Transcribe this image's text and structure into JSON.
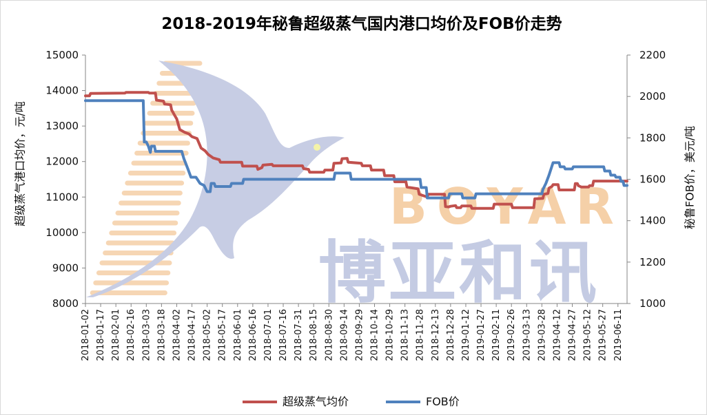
{
  "chart_data": {
    "type": "line",
    "title": "2018-2019年秘鲁超级蒸气国内港口均价及FOB价走势",
    "ylabel_left": "超级蒸气港口均价，元/吨",
    "ylabel_right": "秘鲁FOB价，美元/吨",
    "ylim_left": [
      8000,
      15000
    ],
    "ylim_right": [
      1000,
      2200
    ],
    "yticks_left": [
      "8000",
      "9000",
      "10000",
      "11000",
      "12000",
      "13000",
      "14000",
      "15000"
    ],
    "yticks_right": [
      "1000",
      "1200",
      "1400",
      "1600",
      "1800",
      "2000",
      "2200"
    ],
    "x_start": "2018-01-02",
    "x_end": "2019-06-20",
    "x_ticks": [
      "2018-01-02",
      "2018-01-17",
      "2018-02-01",
      "2018-02-16",
      "2018-03-03",
      "2018-03-18",
      "2018-04-02",
      "2018-04-17",
      "2018-05-02",
      "2018-05-17",
      "2018-06-01",
      "2018-06-16",
      "2018-07-01",
      "2018-07-16",
      "2018-07-31",
      "2018-08-15",
      "2018-08-30",
      "2018-09-14",
      "2018-09-29",
      "2018-10-14",
      "2018-10-29",
      "2018-11-13",
      "2018-11-28",
      "2018-12-13",
      "2018-12-28",
      "2019-01-12",
      "2019-01-27",
      "2019-02-11",
      "2019-02-26",
      "2019-03-13",
      "2019-03-28",
      "2019-04-12",
      "2019-04-27",
      "2019-05-12",
      "2019-05-27",
      "2019-06-11"
    ],
    "grid": false,
    "legend_position": "bottom",
    "series": [
      {
        "name": "超级蒸气均价",
        "axis": "left",
        "color": "#c0504d",
        "points": [
          [
            "2018-01-02",
            13850
          ],
          [
            "2018-01-06",
            13850
          ],
          [
            "2018-01-07",
            13920
          ],
          [
            "2018-02-10",
            13930
          ],
          [
            "2018-02-11",
            13950
          ],
          [
            "2018-03-05",
            13950
          ],
          [
            "2018-03-06",
            13930
          ],
          [
            "2018-03-12",
            13930
          ],
          [
            "2018-03-13",
            13730
          ],
          [
            "2018-03-20",
            13700
          ],
          [
            "2018-03-21",
            13620
          ],
          [
            "2018-03-27",
            13600
          ],
          [
            "2018-03-28",
            13450
          ],
          [
            "2018-03-31",
            13300
          ],
          [
            "2018-04-02",
            13200
          ],
          [
            "2018-04-05",
            12900
          ],
          [
            "2018-04-10",
            12820
          ],
          [
            "2018-04-14",
            12780
          ],
          [
            "2018-04-17",
            12700
          ],
          [
            "2018-04-22",
            12650
          ],
          [
            "2018-04-26",
            12380
          ],
          [
            "2018-04-30",
            12300
          ],
          [
            "2018-05-03",
            12200
          ],
          [
            "2018-05-08",
            12100
          ],
          [
            "2018-05-14",
            12050
          ],
          [
            "2018-05-15",
            11980
          ],
          [
            "2018-06-05",
            11980
          ],
          [
            "2018-06-06",
            11870
          ],
          [
            "2018-06-20",
            11870
          ],
          [
            "2018-06-21",
            11780
          ],
          [
            "2018-06-25",
            11830
          ],
          [
            "2018-06-26",
            11900
          ],
          [
            "2018-07-05",
            11920
          ],
          [
            "2018-07-06",
            11880
          ],
          [
            "2018-08-04",
            11880
          ],
          [
            "2018-08-05",
            11800
          ],
          [
            "2018-08-10",
            11780
          ],
          [
            "2018-08-11",
            11700
          ],
          [
            "2018-08-25",
            11700
          ],
          [
            "2018-08-26",
            11760
          ],
          [
            "2018-09-03",
            11760
          ],
          [
            "2018-09-04",
            11950
          ],
          [
            "2018-09-11",
            11960
          ],
          [
            "2018-09-12",
            12080
          ],
          [
            "2018-09-17",
            12090
          ],
          [
            "2018-09-18",
            11980
          ],
          [
            "2018-10-01",
            11950
          ],
          [
            "2018-10-02",
            11880
          ],
          [
            "2018-10-10",
            11880
          ],
          [
            "2018-10-11",
            11760
          ],
          [
            "2018-10-23",
            11760
          ],
          [
            "2018-10-24",
            11600
          ],
          [
            "2018-11-02",
            11600
          ],
          [
            "2018-11-03",
            11430
          ],
          [
            "2018-11-14",
            11430
          ],
          [
            "2018-11-15",
            11280
          ],
          [
            "2018-11-26",
            11230
          ],
          [
            "2018-11-27",
            11080
          ],
          [
            "2018-12-05",
            11000
          ],
          [
            "2018-12-06",
            11080
          ],
          [
            "2018-12-22",
            11080
          ],
          [
            "2018-12-23",
            10730
          ],
          [
            "2018-12-26",
            10720
          ],
          [
            "2018-12-28",
            10740
          ],
          [
            "2019-01-02",
            10760
          ],
          [
            "2019-01-03",
            10700
          ],
          [
            "2019-01-07",
            10700
          ],
          [
            "2019-01-08",
            10750
          ],
          [
            "2019-01-17",
            10750
          ],
          [
            "2019-01-18",
            10680
          ],
          [
            "2019-02-08",
            10680
          ],
          [
            "2019-02-09",
            10800
          ],
          [
            "2019-02-26",
            10800
          ],
          [
            "2019-02-27",
            10700
          ],
          [
            "2019-03-20",
            10700
          ],
          [
            "2019-03-21",
            10950
          ],
          [
            "2019-03-29",
            10960
          ],
          [
            "2019-03-30",
            11080
          ],
          [
            "2019-04-03",
            11100
          ],
          [
            "2019-04-04",
            11250
          ],
          [
            "2019-04-07",
            11300
          ],
          [
            "2019-04-08",
            11350
          ],
          [
            "2019-04-13",
            11350
          ],
          [
            "2019-04-14",
            11200
          ],
          [
            "2019-04-29",
            11200
          ],
          [
            "2019-04-30",
            11380
          ],
          [
            "2019-05-02",
            11380
          ],
          [
            "2019-05-03",
            11320
          ],
          [
            "2019-05-06",
            11280
          ],
          [
            "2019-05-13",
            11280
          ],
          [
            "2019-05-14",
            11320
          ],
          [
            "2019-05-17",
            11320
          ],
          [
            "2019-05-18",
            11450
          ],
          [
            "2019-06-20",
            11450
          ]
        ]
      },
      {
        "name": "FOB价",
        "axis": "right",
        "color": "#4f81bd",
        "points": [
          [
            "2018-01-02",
            1980
          ],
          [
            "2018-02-28",
            1980
          ],
          [
            "2018-03-01",
            1780
          ],
          [
            "2018-03-03",
            1780
          ],
          [
            "2018-03-05",
            1760
          ],
          [
            "2018-03-07",
            1730
          ],
          [
            "2018-03-08",
            1760
          ],
          [
            "2018-03-11",
            1760
          ],
          [
            "2018-03-12",
            1735
          ],
          [
            "2018-04-07",
            1735
          ],
          [
            "2018-04-09",
            1700
          ],
          [
            "2018-04-13",
            1650
          ],
          [
            "2018-04-16",
            1610
          ],
          [
            "2018-04-21",
            1610
          ],
          [
            "2018-04-25",
            1580
          ],
          [
            "2018-04-29",
            1570
          ],
          [
            "2018-05-02",
            1540
          ],
          [
            "2018-05-05",
            1540
          ],
          [
            "2018-05-06",
            1580
          ],
          [
            "2018-05-09",
            1580
          ],
          [
            "2018-05-10",
            1565
          ],
          [
            "2018-05-25",
            1565
          ],
          [
            "2018-05-26",
            1580
          ],
          [
            "2018-06-06",
            1580
          ],
          [
            "2018-06-07",
            1600
          ],
          [
            "2018-09-04",
            1600
          ],
          [
            "2018-09-05",
            1630
          ],
          [
            "2018-09-20",
            1630
          ],
          [
            "2018-09-21",
            1600
          ],
          [
            "2018-11-28",
            1600
          ],
          [
            "2018-11-29",
            1560
          ],
          [
            "2018-12-04",
            1560
          ],
          [
            "2018-12-05",
            1510
          ],
          [
            "2018-12-26",
            1510
          ],
          [
            "2018-12-27",
            1530
          ],
          [
            "2019-01-08",
            1530
          ],
          [
            "2019-01-09",
            1510
          ],
          [
            "2019-01-21",
            1510
          ],
          [
            "2019-01-22",
            1530
          ],
          [
            "2019-03-28",
            1530
          ],
          [
            "2019-03-29",
            1550
          ],
          [
            "2019-04-01",
            1580
          ],
          [
            "2019-04-04",
            1620
          ],
          [
            "2019-04-08",
            1680
          ],
          [
            "2019-04-14",
            1680
          ],
          [
            "2019-04-15",
            1660
          ],
          [
            "2019-04-19",
            1660
          ],
          [
            "2019-04-20",
            1650
          ],
          [
            "2019-04-27",
            1650
          ],
          [
            "2019-04-28",
            1660
          ],
          [
            "2019-05-28",
            1660
          ],
          [
            "2019-05-29",
            1640
          ],
          [
            "2019-06-03",
            1640
          ],
          [
            "2019-06-04",
            1620
          ],
          [
            "2019-06-08",
            1620
          ],
          [
            "2019-06-09",
            1610
          ],
          [
            "2019-06-13",
            1610
          ],
          [
            "2019-06-14",
            1590
          ],
          [
            "2019-06-16",
            1590
          ],
          [
            "2019-06-17",
            1570
          ],
          [
            "2019-06-20",
            1570
          ]
        ]
      }
    ]
  },
  "watermark": {
    "latin": "BOYAR",
    "cjk": "博亚和讯",
    "bird_color": "#c7cde4",
    "latin_color": "#f5d0a8",
    "cjk_color": "#c4cbe3"
  }
}
